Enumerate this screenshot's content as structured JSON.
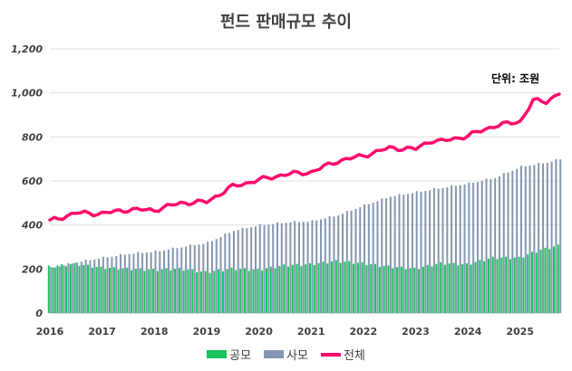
{
  "chart_data": {
    "type": "bar+line",
    "title": "펀드 판매규모  추이",
    "unit_label": "단위: 조원",
    "ylim": [
      0,
      1200
    ],
    "y_ticks": [
      "0",
      "200",
      "400",
      "600",
      "800",
      "1,000",
      "1,200"
    ],
    "x_ticks": [
      "2016",
      "2017",
      "2018",
      "2019",
      "2020",
      "2021",
      "2022",
      "2023",
      "2024",
      "2025"
    ],
    "x_start": 2016.0,
    "x_end": 2025.75,
    "frequency": "monthly",
    "series": [
      {
        "name": "공모",
        "kind": "bar",
        "color": "#17c35a",
        "anchors": [
          [
            2016.0,
            210
          ],
          [
            2016.5,
            222
          ],
          [
            2017.0,
            205
          ],
          [
            2017.5,
            200
          ],
          [
            2018.0,
            195
          ],
          [
            2018.5,
            200
          ],
          [
            2019.0,
            185
          ],
          [
            2019.5,
            200
          ],
          [
            2020.0,
            195
          ],
          [
            2020.5,
            215
          ],
          [
            2021.0,
            220
          ],
          [
            2021.5,
            235
          ],
          [
            2022.0,
            225
          ],
          [
            2022.5,
            210
          ],
          [
            2023.0,
            200
          ],
          [
            2023.5,
            225
          ],
          [
            2024.0,
            220
          ],
          [
            2024.5,
            250
          ],
          [
            2025.0,
            250
          ],
          [
            2025.4,
            285
          ],
          [
            2025.75,
            305
          ]
        ]
      },
      {
        "name": "사모",
        "kind": "bar",
        "color": "#8497b0",
        "anchors": [
          [
            2016.0,
            205
          ],
          [
            2016.5,
            232
          ],
          [
            2017.0,
            252
          ],
          [
            2017.5,
            270
          ],
          [
            2018.0,
            280
          ],
          [
            2018.5,
            300
          ],
          [
            2019.0,
            320
          ],
          [
            2019.5,
            375
          ],
          [
            2020.0,
            400
          ],
          [
            2020.5,
            412
          ],
          [
            2021.0,
            418
          ],
          [
            2021.5,
            445
          ],
          [
            2022.0,
            490
          ],
          [
            2022.5,
            530
          ],
          [
            2023.0,
            550
          ],
          [
            2023.5,
            570
          ],
          [
            2024.0,
            590
          ],
          [
            2024.5,
            615
          ],
          [
            2025.0,
            665
          ],
          [
            2025.5,
            685
          ],
          [
            2025.75,
            700
          ]
        ]
      },
      {
        "name": "전체",
        "kind": "line",
        "color": "#ff0a6c",
        "anchors": [
          [
            2016.0,
            418
          ],
          [
            2016.5,
            455
          ],
          [
            2017.0,
            452
          ],
          [
            2017.5,
            470
          ],
          [
            2018.0,
            468
          ],
          [
            2018.5,
            500
          ],
          [
            2019.0,
            505
          ],
          [
            2019.5,
            575
          ],
          [
            2020.0,
            605
          ],
          [
            2020.5,
            630
          ],
          [
            2021.0,
            640
          ],
          [
            2021.5,
            690
          ],
          [
            2022.0,
            715
          ],
          [
            2022.5,
            750
          ],
          [
            2023.0,
            745
          ],
          [
            2023.3,
            785
          ],
          [
            2023.5,
            780
          ],
          [
            2024.0,
            805
          ],
          [
            2024.5,
            850
          ],
          [
            2025.0,
            870
          ],
          [
            2025.25,
            965
          ],
          [
            2025.5,
            960
          ],
          [
            2025.75,
            1000
          ]
        ]
      }
    ],
    "grid": true,
    "legend_position": "bottom"
  }
}
